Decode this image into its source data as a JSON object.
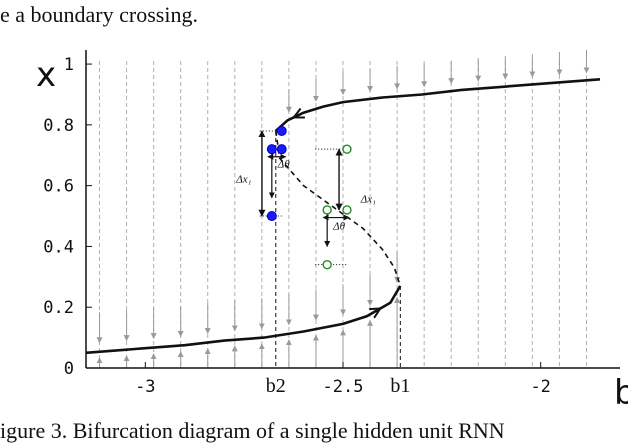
{
  "caption_top": "e a boundary crossing.",
  "caption_bottom": "igure 3. Bifurcation diagram of a single hidden unit RNN",
  "chart_data": {
    "type": "line",
    "xlabel": "b",
    "ylabel": "x",
    "xlim": [
      -3.15,
      -1.85
    ],
    "ylim": [
      0,
      1.02
    ],
    "x_ticks": [
      {
        "value": -3,
        "label": "-3"
      },
      {
        "value": -2.5,
        "label": "-2.5"
      },
      {
        "value": -2,
        "label": "-2"
      }
    ],
    "y_ticks": [
      {
        "value": 0,
        "label": "0"
      },
      {
        "value": 0.2,
        "label": "0.2"
      },
      {
        "value": 0.4,
        "label": "0.4"
      },
      {
        "value": 0.6,
        "label": "0.6"
      },
      {
        "value": 0.8,
        "label": "0.8"
      },
      {
        "value": 1.0,
        "label": "1"
      }
    ],
    "bifurcation_points": [
      {
        "label": "b2",
        "x": -2.67
      },
      {
        "label": "b1",
        "x": -2.355
      }
    ],
    "upper_stable_branch": [
      [
        -2.67,
        0.78
      ],
      [
        -2.64,
        0.815
      ],
      [
        -2.6,
        0.84
      ],
      [
        -2.55,
        0.86
      ],
      [
        -2.5,
        0.875
      ],
      [
        -2.4,
        0.89
      ],
      [
        -2.3,
        0.9
      ],
      [
        -2.2,
        0.915
      ],
      [
        -2.1,
        0.925
      ],
      [
        -2.0,
        0.935
      ],
      [
        -1.85,
        0.95
      ]
    ],
    "unstable_branch": [
      [
        -2.67,
        0.78
      ],
      [
        -2.66,
        0.69
      ],
      [
        -2.6,
        0.6
      ],
      [
        -2.52,
        0.525
      ],
      [
        -2.45,
        0.46
      ],
      [
        -2.4,
        0.39
      ],
      [
        -2.37,
        0.33
      ],
      [
        -2.355,
        0.27
      ]
    ],
    "lower_stable_branch": [
      [
        -3.15,
        0.05
      ],
      [
        -3.0,
        0.065
      ],
      [
        -2.9,
        0.075
      ],
      [
        -2.8,
        0.09
      ],
      [
        -2.7,
        0.1
      ],
      [
        -2.6,
        0.12
      ],
      [
        -2.5,
        0.145
      ],
      [
        -2.44,
        0.17
      ],
      [
        -2.38,
        0.215
      ],
      [
        -2.355,
        0.27
      ]
    ],
    "blue_points": [
      {
        "x": -2.655,
        "y": 0.78
      },
      {
        "x": -2.68,
        "y": 0.72
      },
      {
        "x": -2.655,
        "y": 0.72
      },
      {
        "x": -2.68,
        "y": 0.5
      }
    ],
    "green_points": [
      {
        "x": -2.49,
        "y": 0.72
      },
      {
        "x": -2.54,
        "y": 0.52
      },
      {
        "x": -2.49,
        "y": 0.52
      },
      {
        "x": -2.54,
        "y": 0.34
      }
    ],
    "annotations": [
      {
        "text": "Δx₁",
        "x": -2.77,
        "y": 0.61
      },
      {
        "text": "Δθ",
        "x": -2.665,
        "y": 0.66
      },
      {
        "text": "Δx₁",
        "x": -2.455,
        "y": 0.545
      },
      {
        "text": "Δθ",
        "x": -2.525,
        "y": 0.455
      }
    ],
    "grid": false,
    "background_flow_field": true
  }
}
